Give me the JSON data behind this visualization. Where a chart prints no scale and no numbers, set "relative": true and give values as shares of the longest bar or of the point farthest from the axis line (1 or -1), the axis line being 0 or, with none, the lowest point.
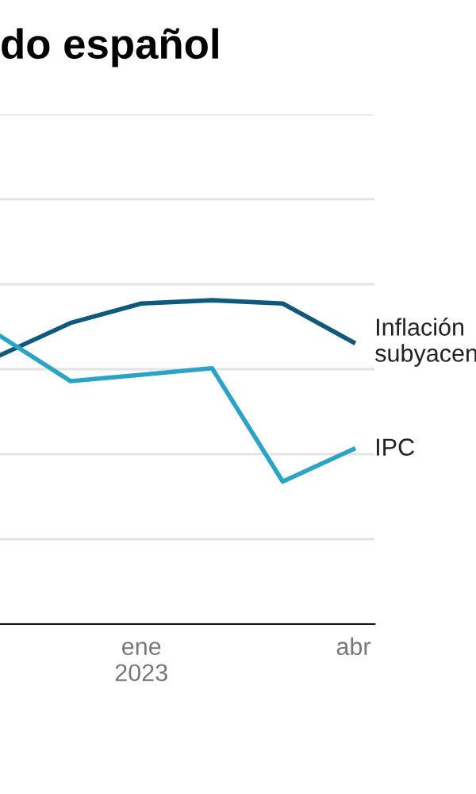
{
  "chart_data": {
    "type": "line",
    "title": "do español",
    "relative": true,
    "grid": "y",
    "legend": false,
    "categories": [
      null,
      null,
      "ene\n2023",
      null,
      null,
      "abr"
    ],
    "series": [
      {
        "name": "Inflación\nsubyacen",
        "color": "#0f5a7a",
        "values": [
          0.83,
          0.93,
          0.99,
          1.0,
          0.99,
          0.87
        ]
      },
      {
        "name": "IPC",
        "color": "#2aa3c4",
        "values": [
          0.89,
          0.75,
          0.77,
          0.79,
          0.44,
          0.54
        ]
      }
    ]
  }
}
